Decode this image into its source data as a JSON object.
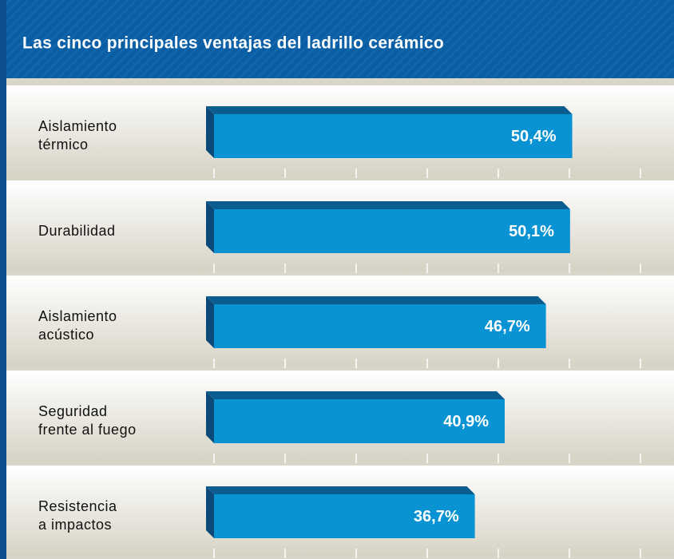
{
  "chart_data": {
    "type": "bar",
    "orientation": "horizontal",
    "title": "Las cinco principales ventajas del ladrillo cerámico",
    "categories": [
      "Aislamiento\ntérmico",
      "Durabilidad",
      "Aislamiento\nacústico",
      "Seguridad\nfrente al fuego",
      "Resistencia\na impactos"
    ],
    "values": [
      50.4,
      50.1,
      46.7,
      40.9,
      36.7
    ],
    "value_labels": [
      "50,4%",
      "50,1%",
      "46,7%",
      "40,9%",
      "36,7%"
    ],
    "color": "#0a93d3",
    "xlim": [
      0,
      60
    ],
    "xticks": [
      0,
      10,
      20,
      30,
      40,
      50,
      60
    ]
  }
}
